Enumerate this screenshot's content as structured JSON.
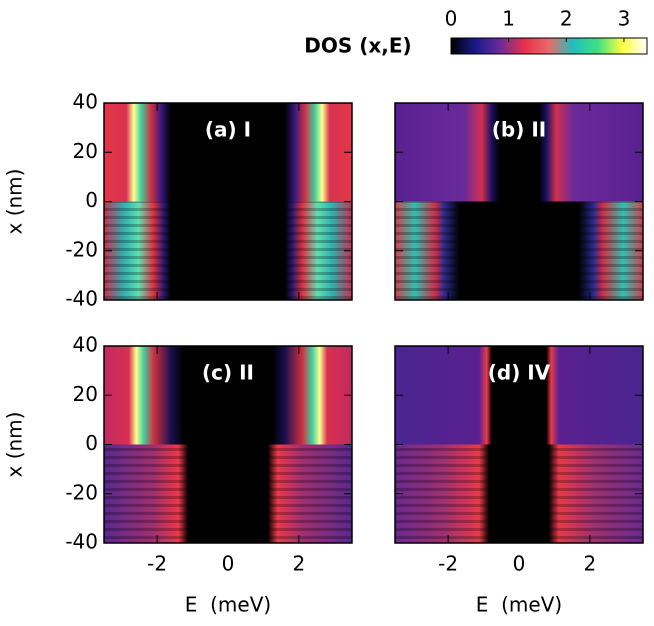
{
  "chart_data": {
    "type": "heatmap",
    "colorbar": {
      "label": "DOS (x,E)",
      "lim": [
        0,
        3.4
      ],
      "ticks": [
        0,
        1,
        2,
        3
      ],
      "colormap": [
        "#000000",
        "#1a1a8c",
        "#6a2a9a",
        "#e8304a",
        "#e86a6a",
        "#20c0c0",
        "#40e080",
        "#ffff40",
        "#ffffff"
      ]
    },
    "panels": [
      {
        "title": "(a) I"
      },
      {
        "title": "(b) II"
      },
      {
        "title": "(c) II"
      },
      {
        "title": "(d) IV"
      }
    ],
    "xlabel": "E  (meV)",
    "ylabel": "x (nm)",
    "xlim": [
      -3.5,
      3.5
    ],
    "ylim": [
      -40,
      40
    ],
    "xticks": [
      -2,
      0,
      2
    ],
    "yticks": [
      -40,
      -20,
      0,
      20,
      40
    ]
  }
}
